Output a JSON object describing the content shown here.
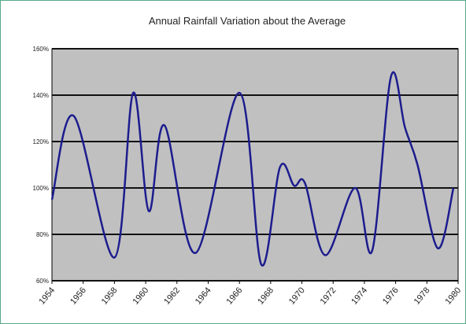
{
  "chart_data": {
    "type": "line",
    "title": "Annual Rainfall Variation about the Average",
    "x": [
      1954,
      1955.4,
      1958,
      1959.2,
      1960.2,
      1961.2,
      1963.2,
      1966,
      1967.4,
      1968.6,
      1969.5,
      1970.2,
      1971.5,
      1973.4,
      1974.5,
      1975.7,
      1976.6,
      1977.4,
      1978.7,
      1979.7
    ],
    "values": [
      95,
      131,
      70,
      141,
      90,
      127,
      72,
      141,
      67,
      109,
      101,
      102,
      71,
      100,
      73,
      148,
      126,
      110,
      74,
      100
    ],
    "color": "#1c1c8e",
    "xlim": [
      1954,
      1980
    ],
    "xticks": [
      1954,
      1956,
      1958,
      1960,
      1962,
      1964,
      1966,
      1968,
      1970,
      1972,
      1974,
      1976,
      1978,
      1980
    ],
    "ylim": [
      60,
      160
    ],
    "yticks": [
      {
        "value": 60,
        "label": "60%"
      },
      {
        "value": 80,
        "label": "80%"
      },
      {
        "value": 100,
        "label": "100%"
      },
      {
        "value": 120,
        "label": "120%"
      },
      {
        "value": 140,
        "label": "140%"
      },
      {
        "value": 160,
        "label": "160%"
      }
    ],
    "grid": true
  }
}
